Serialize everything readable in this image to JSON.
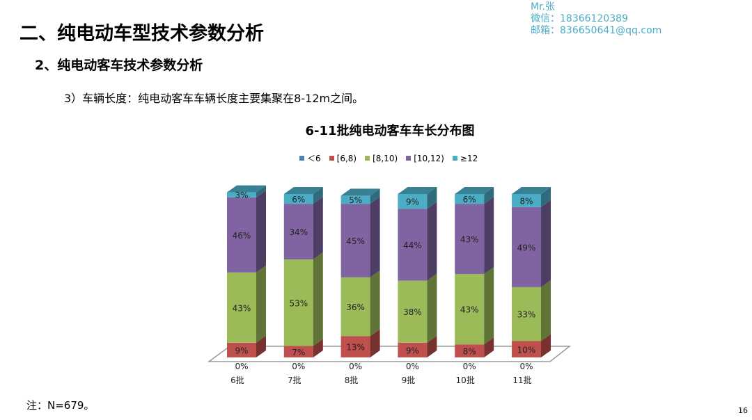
{
  "header": {
    "title": "二、纯电动车型技术参数分析",
    "subtitle": "2、纯电动客车技术参数分析",
    "point": "3）车辆长度：纯电动客车车辆长度主要集聚在8-12m之间。"
  },
  "contact": {
    "name": "Mr.张",
    "wechat": "微信：18366120389",
    "email": "邮箱：836650641@qq.com"
  },
  "note": "注：N=679。",
  "page_number": "16",
  "chart_data": {
    "type": "bar",
    "stacked": true,
    "title": "6-11批纯电动客车车长分布图",
    "categories": [
      "6批",
      "7批",
      "8批",
      "9批",
      "10批",
      "11批"
    ],
    "legend_position": "top",
    "series": [
      {
        "name": "＜6",
        "color": "#4f81bd",
        "values": [
          0,
          0,
          0,
          0,
          0,
          0
        ]
      },
      {
        "name": "[6,8)",
        "color": "#c0504d",
        "values": [
          9,
          7,
          13,
          9,
          8,
          10
        ]
      },
      {
        "name": "[8,10)",
        "color": "#9bbb59",
        "values": [
          43,
          53,
          36,
          38,
          43,
          33
        ]
      },
      {
        "name": "[10,12)",
        "color": "#8064a2",
        "values": [
          46,
          34,
          45,
          44,
          43,
          49
        ]
      },
      {
        "name": "≥12",
        "color": "#4bacc6",
        "values": [
          3,
          6,
          5,
          9,
          6,
          8
        ]
      }
    ],
    "ylim": [
      0,
      101
    ]
  }
}
